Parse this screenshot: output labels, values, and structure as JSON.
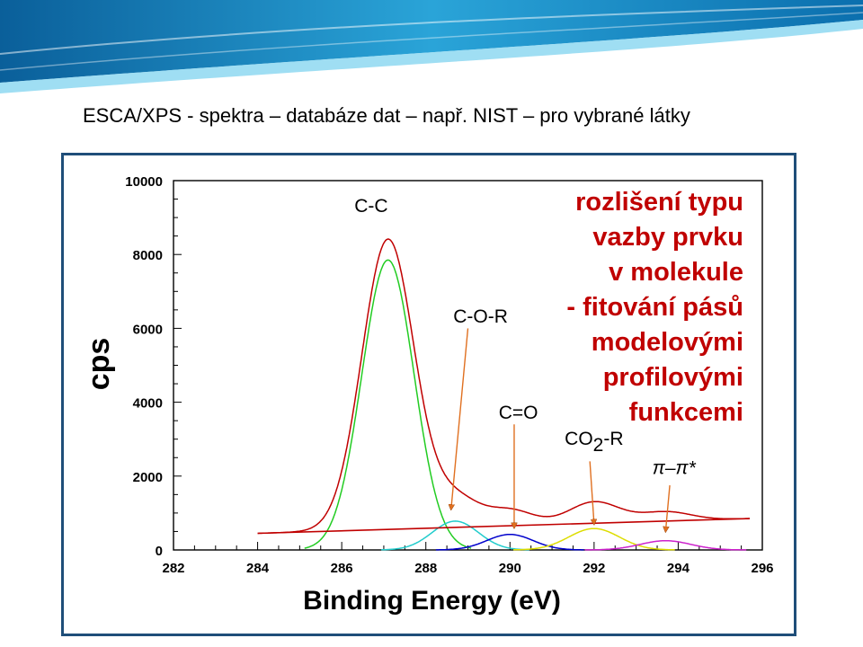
{
  "slide": {
    "title": "ESCA/XPS  - spektra – databáze dat – např. NIST – pro vybrané látky"
  },
  "colors": {
    "header_dark": "#0b6fae",
    "header_light": "#5ec6e8",
    "frame": "#1f4e79",
    "envelope": "#c00000",
    "baseline": "#c00000",
    "annotation": "#c00000",
    "arrow": "#e07020"
  },
  "annotation_lines": [
    "rozlišení typu",
    "vazby prvku",
    "v molekule",
    "- fitování pásů",
    "modelovými",
    "profilovými",
    "funkcemi"
  ],
  "chart_data": {
    "type": "line",
    "xlabel": "Binding Energy (eV)",
    "ylabel": "cps",
    "xlim": [
      282,
      296
    ],
    "ylim": [
      0,
      10000
    ],
    "x_ticks": [
      282,
      284,
      286,
      288,
      290,
      292,
      294,
      296
    ],
    "y_ticks": [
      0,
      2000,
      4000,
      6000,
      8000,
      10000
    ],
    "grid": false,
    "baseline": {
      "x": [
        284.0,
        295.7
      ],
      "y": [
        450,
        850
      ]
    },
    "components": [
      {
        "label": "C-C",
        "center": 287.1,
        "height": 7850,
        "width": 0.62,
        "color": "#22cc22",
        "label_pos": [
          286.7,
          9150
        ],
        "arrow": null
      },
      {
        "label": "C-O-R",
        "center": 288.7,
        "height": 780,
        "width": 0.55,
        "color": "#22cccc",
        "label_pos": [
          289.3,
          6150
        ],
        "arrow": [
          [
            289.0,
            6000
          ],
          [
            288.6,
            1100
          ]
        ]
      },
      {
        "label": "C=O",
        "center": 290.0,
        "height": 420,
        "width": 0.55,
        "color": "#0000cc",
        "label_pos": [
          290.2,
          3550
        ],
        "arrow": [
          [
            290.1,
            3400
          ],
          [
            290.1,
            600
          ]
        ]
      },
      {
        "label": "CO2-R",
        "center": 292.0,
        "height": 580,
        "width": 0.6,
        "color": "#dddd00",
        "label_pos": [
          292.0,
          2850
        ],
        "arrow": [
          [
            291.9,
            2400
          ],
          [
            292.0,
            700
          ]
        ]
      },
      {
        "label": "π–π*",
        "center": 293.7,
        "height": 250,
        "width": 0.6,
        "color": "#cc22cc",
        "label_pos": [
          293.9,
          2050
        ],
        "arrow": [
          [
            293.8,
            1750
          ],
          [
            293.7,
            500
          ]
        ]
      }
    ]
  }
}
